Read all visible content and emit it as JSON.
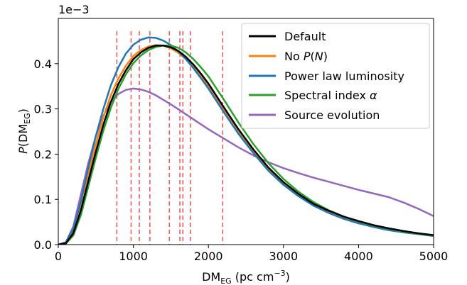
{
  "chart_data": {
    "type": "line",
    "xlabel_main": "DM",
    "xlabel_sub": "EG",
    "xlabel_unit": " (pc cm",
    "xlabel_exp": "−3",
    "xlabel_close": ")",
    "ylabel_main": "P",
    "ylabel_open": "(DM",
    "ylabel_sub": "EG",
    "ylabel_close": ")",
    "y_offset_text": "1e−3",
    "xlim": [
      0,
      5000
    ],
    "ylim": [
      0,
      0.5
    ],
    "xticks": [
      0,
      1000,
      2000,
      3000,
      4000,
      5000
    ],
    "xtick_labels": [
      "0",
      "1000",
      "2000",
      "3000",
      "4000",
      "5000"
    ],
    "yticks": [
      0.0,
      0.1,
      0.2,
      0.3,
      0.4
    ],
    "ytick_labels": [
      "0.0",
      "0.1",
      "0.2",
      "0.3",
      "0.4"
    ],
    "legend_position": "top-right",
    "vlines": {
      "color": "#f25c5c",
      "style": "dashed",
      "x": [
        780,
        970,
        1080,
        1220,
        1480,
        1620,
        1660,
        1760,
        2190
      ]
    },
    "series": [
      {
        "name": "Default",
        "color": "#000000",
        "x": [
          0,
          100,
          200,
          300,
          400,
          500,
          600,
          700,
          800,
          900,
          1000,
          1100,
          1200,
          1300,
          1400,
          1500,
          1600,
          1700,
          1800,
          1900,
          2000,
          2200,
          2400,
          2600,
          2800,
          3000,
          3200,
          3400,
          3600,
          3800,
          4000,
          4200,
          4400,
          4600,
          4800,
          5000
        ],
        "y": [
          0.0,
          0.003,
          0.025,
          0.075,
          0.14,
          0.205,
          0.265,
          0.315,
          0.355,
          0.385,
          0.41,
          0.425,
          0.435,
          0.44,
          0.44,
          0.436,
          0.428,
          0.415,
          0.398,
          0.378,
          0.356,
          0.305,
          0.255,
          0.21,
          0.17,
          0.138,
          0.112,
          0.09,
          0.075,
          0.062,
          0.052,
          0.043,
          0.036,
          0.03,
          0.025,
          0.021
        ]
      },
      {
        "name": "No P(N)",
        "name_plain": "No ",
        "name_italic": "P",
        "name_paren": "(",
        "name_italic2": "N",
        "name_close": ")",
        "color": "#ff7f0e",
        "x": [
          0,
          100,
          200,
          300,
          400,
          500,
          600,
          700,
          800,
          900,
          1000,
          1100,
          1200,
          1300,
          1400,
          1500,
          1600,
          1700,
          1800,
          1900,
          2000,
          2200,
          2400,
          2600,
          2800,
          3000,
          3200,
          3400,
          3600,
          3800,
          4000,
          4200,
          4400,
          4600,
          4800,
          5000
        ],
        "y": [
          0.0,
          0.004,
          0.03,
          0.085,
          0.155,
          0.222,
          0.282,
          0.33,
          0.367,
          0.395,
          0.417,
          0.43,
          0.438,
          0.441,
          0.44,
          0.434,
          0.424,
          0.41,
          0.392,
          0.372,
          0.35,
          0.298,
          0.248,
          0.204,
          0.165,
          0.134,
          0.108,
          0.087,
          0.071,
          0.058,
          0.048,
          0.04,
          0.033,
          0.027,
          0.023,
          0.019
        ]
      },
      {
        "name": "Power law luminosity",
        "color": "#1f77b4",
        "x": [
          0,
          100,
          200,
          300,
          400,
          500,
          600,
          700,
          800,
          900,
          1000,
          1100,
          1200,
          1300,
          1400,
          1500,
          1600,
          1700,
          1800,
          1900,
          2000,
          2200,
          2400,
          2600,
          2800,
          3000,
          3200,
          3400,
          3600,
          3800,
          4000,
          4200,
          4400,
          4600,
          4800,
          5000
        ],
        "y": [
          0.0,
          0.005,
          0.035,
          0.095,
          0.17,
          0.24,
          0.3,
          0.352,
          0.392,
          0.422,
          0.442,
          0.453,
          0.458,
          0.457,
          0.451,
          0.441,
          0.427,
          0.41,
          0.39,
          0.368,
          0.345,
          0.294,
          0.245,
          0.202,
          0.163,
          0.132,
          0.107,
          0.086,
          0.07,
          0.057,
          0.047,
          0.039,
          0.032,
          0.027,
          0.023,
          0.019
        ]
      },
      {
        "name": "Spectral index α",
        "name_plain": "Spectral index ",
        "name_italic": "α",
        "color": "#2ca02c",
        "x": [
          0,
          100,
          200,
          300,
          400,
          500,
          600,
          700,
          800,
          900,
          1000,
          1100,
          1200,
          1300,
          1400,
          1500,
          1600,
          1700,
          1800,
          1900,
          2000,
          2200,
          2400,
          2600,
          2800,
          3000,
          3200,
          3400,
          3600,
          3800,
          4000,
          4200,
          4400,
          4600,
          4800,
          5000
        ],
        "y": [
          0.0,
          0.002,
          0.02,
          0.065,
          0.128,
          0.192,
          0.252,
          0.302,
          0.344,
          0.376,
          0.401,
          0.418,
          0.43,
          0.437,
          0.44,
          0.44,
          0.435,
          0.425,
          0.41,
          0.392,
          0.372,
          0.322,
          0.27,
          0.222,
          0.18,
          0.145,
          0.117,
          0.094,
          0.076,
          0.062,
          0.051,
          0.042,
          0.035,
          0.029,
          0.024,
          0.02
        ]
      },
      {
        "name": "Source evolution",
        "color": "#9467bd",
        "x": [
          0,
          100,
          200,
          300,
          400,
          500,
          600,
          700,
          800,
          900,
          1000,
          1100,
          1200,
          1300,
          1400,
          1500,
          1600,
          1800,
          2000,
          2200,
          2400,
          2600,
          2800,
          3000,
          3200,
          3400,
          3600,
          3800,
          4000,
          4200,
          4400,
          4600,
          4800,
          5000
        ],
        "y": [
          0.0,
          0.005,
          0.04,
          0.11,
          0.18,
          0.24,
          0.285,
          0.315,
          0.333,
          0.342,
          0.345,
          0.343,
          0.338,
          0.33,
          0.32,
          0.31,
          0.299,
          0.277,
          0.255,
          0.235,
          0.215,
          0.197,
          0.182,
          0.169,
          0.158,
          0.148,
          0.139,
          0.13,
          0.121,
          0.113,
          0.105,
          0.093,
          0.079,
          0.063
        ]
      }
    ]
  }
}
